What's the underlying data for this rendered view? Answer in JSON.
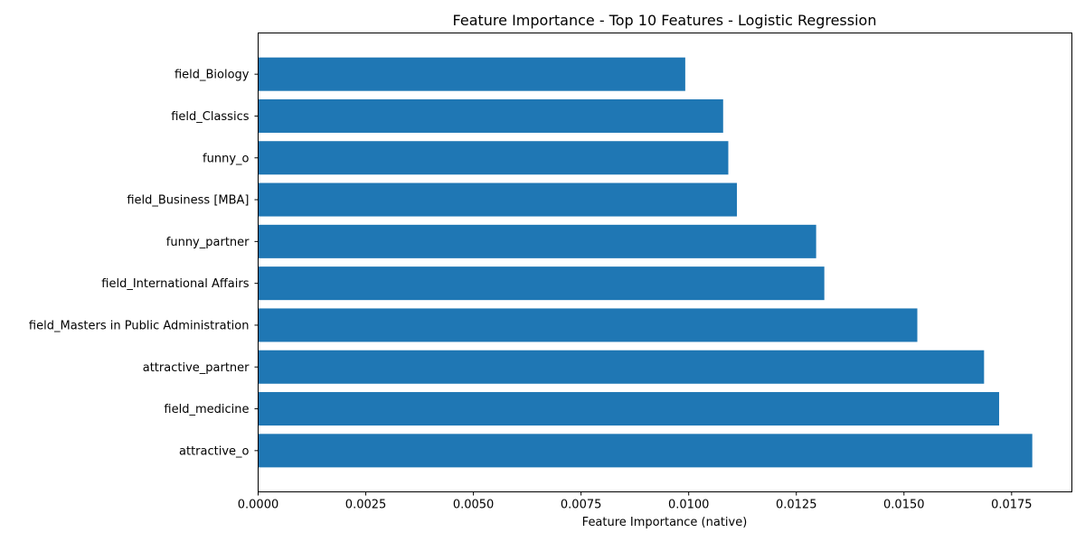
{
  "chart_data": {
    "type": "bar",
    "orientation": "horizontal",
    "title": "Feature Importance - Top 10 Features - Logistic Regression",
    "xlabel": "Feature Importance (native)",
    "ylabel": "",
    "xlim": [
      0,
      0.0189
    ],
    "xticks": [
      "0.0000",
      "0.0025",
      "0.0050",
      "0.0075",
      "0.0100",
      "0.0125",
      "0.0150",
      "0.0175"
    ],
    "xtick_values": [
      0,
      0.0025,
      0.005,
      0.0075,
      0.01,
      0.0125,
      0.015,
      0.0175
    ],
    "categories": [
      "field_Biology",
      "field_Classics",
      "funny_o",
      "field_Business [MBA]",
      "funny_partner",
      "field_International Affairs",
      "field_Masters in Public Administration",
      "attractive_partner",
      "field_medicine",
      "attractive_o"
    ],
    "values": [
      0.00992,
      0.0108,
      0.01092,
      0.01112,
      0.01296,
      0.01315,
      0.01531,
      0.01686,
      0.01721,
      0.01798
    ],
    "bar_color": "#1f77b4",
    "grid": false,
    "legend": "none"
  }
}
